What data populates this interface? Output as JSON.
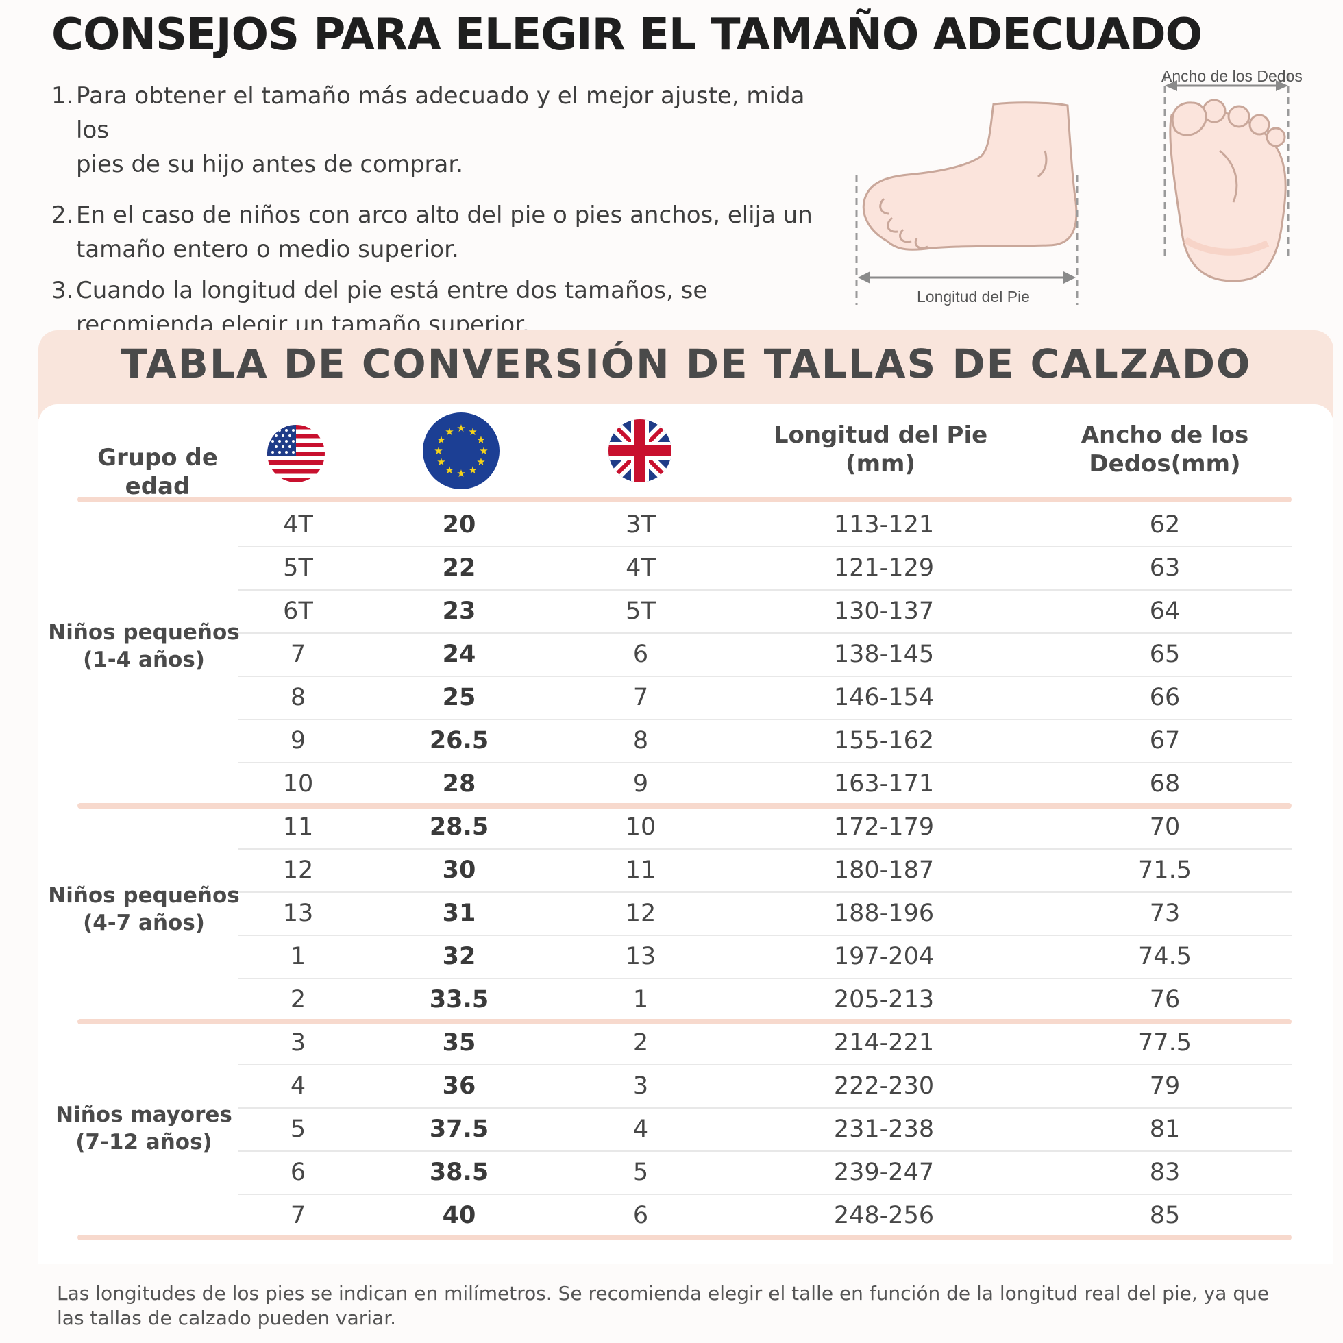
{
  "title": "CONSEJOS PARA ELEGIR EL TAMAÑO ADECUADO",
  "tips": [
    {
      "num": "1.",
      "line1": "Para obtener el tamaño más adecuado y el mejor ajuste, mida los",
      "line2": "pies de su hijo antes de comprar."
    },
    {
      "num": "2.",
      "line1": "En el caso de niños con arco alto del pie o pies anchos, elija un",
      "line2": "tamaño entero o medio superior."
    },
    {
      "num": "3.",
      "line1": "Cuando la longitud del pie está entre dos tamaños, se",
      "line2": "recomienda elegir un tamaño superior."
    }
  ],
  "illustration": {
    "length_label": "Longitud del Pie",
    "width_label": "Ancho de los Dedos"
  },
  "table": {
    "title": "TABLA DE CONVERSIÓN DE TALLAS DE CALZADO",
    "headers": {
      "age_group": "Grupo de edad",
      "foot_length_1": "Longitud del Pie",
      "foot_length_2": "(mm)",
      "toe_width_1": "Ancho de los",
      "toe_width_2": "Dedos(mm)"
    },
    "flags": {
      "us": "us-flag-icon",
      "eu": "eu-flag-icon",
      "uk": "uk-flag-icon"
    },
    "groups": [
      {
        "label1": "Niños pequeños",
        "label2": "(1-4 años)"
      },
      {
        "label1": "Niños pequeños",
        "label2": "(4-7 años)"
      },
      {
        "label1": "Niños mayores",
        "label2": "(7-12 años)"
      }
    ],
    "rows": [
      {
        "us": "4T",
        "eu": "20",
        "uk": "3T",
        "len": "113-121",
        "wid": "62"
      },
      {
        "us": "5T",
        "eu": "22",
        "uk": "4T",
        "len": "121-129",
        "wid": "63"
      },
      {
        "us": "6T",
        "eu": "23",
        "uk": "5T",
        "len": "130-137",
        "wid": "64"
      },
      {
        "us": "7",
        "eu": "24",
        "uk": "6",
        "len": "138-145",
        "wid": "65"
      },
      {
        "us": "8",
        "eu": "25",
        "uk": "7",
        "len": "146-154",
        "wid": "66"
      },
      {
        "us": "9",
        "eu": "26.5",
        "uk": "8",
        "len": "155-162",
        "wid": "67"
      },
      {
        "us": "10",
        "eu": "28",
        "uk": "9",
        "len": "163-171",
        "wid": "68"
      },
      {
        "us": "11",
        "eu": "28.5",
        "uk": "10",
        "len": "172-179",
        "wid": "70"
      },
      {
        "us": "12",
        "eu": "30",
        "uk": "11",
        "len": "180-187",
        "wid": "71.5"
      },
      {
        "us": "13",
        "eu": "31",
        "uk": "12",
        "len": "188-196",
        "wid": "73"
      },
      {
        "us": "1",
        "eu": "32",
        "uk": "13",
        "len": "197-204",
        "wid": "74.5"
      },
      {
        "us": "2",
        "eu": "33.5",
        "uk": "1",
        "len": "205-213",
        "wid": "76"
      },
      {
        "us": "3",
        "eu": "35",
        "uk": "2",
        "len": "214-221",
        "wid": "77.5"
      },
      {
        "us": "4",
        "eu": "36",
        "uk": "3",
        "len": "222-230",
        "wid": "79"
      },
      {
        "us": "5",
        "eu": "37.5",
        "uk": "4",
        "len": "231-238",
        "wid": "81"
      },
      {
        "us": "6",
        "eu": "38.5",
        "uk": "5",
        "len": "239-247",
        "wid": "83"
      },
      {
        "us": "7",
        "eu": "40",
        "uk": "6",
        "len": "248-256",
        "wid": "85"
      }
    ]
  },
  "footnote": {
    "line1": "Las longitudes de los pies se indican en milímetros. Se recomienda elegir el talle en función de la longitud real del pie, ya que",
    "line2": "las tallas de calzado pueden variar."
  },
  "colors": {
    "accent": "#f9e5dc",
    "separator": "#f7d9cd",
    "foot_skin": "#fbe4dc",
    "foot_outline": "#c9a79a"
  }
}
